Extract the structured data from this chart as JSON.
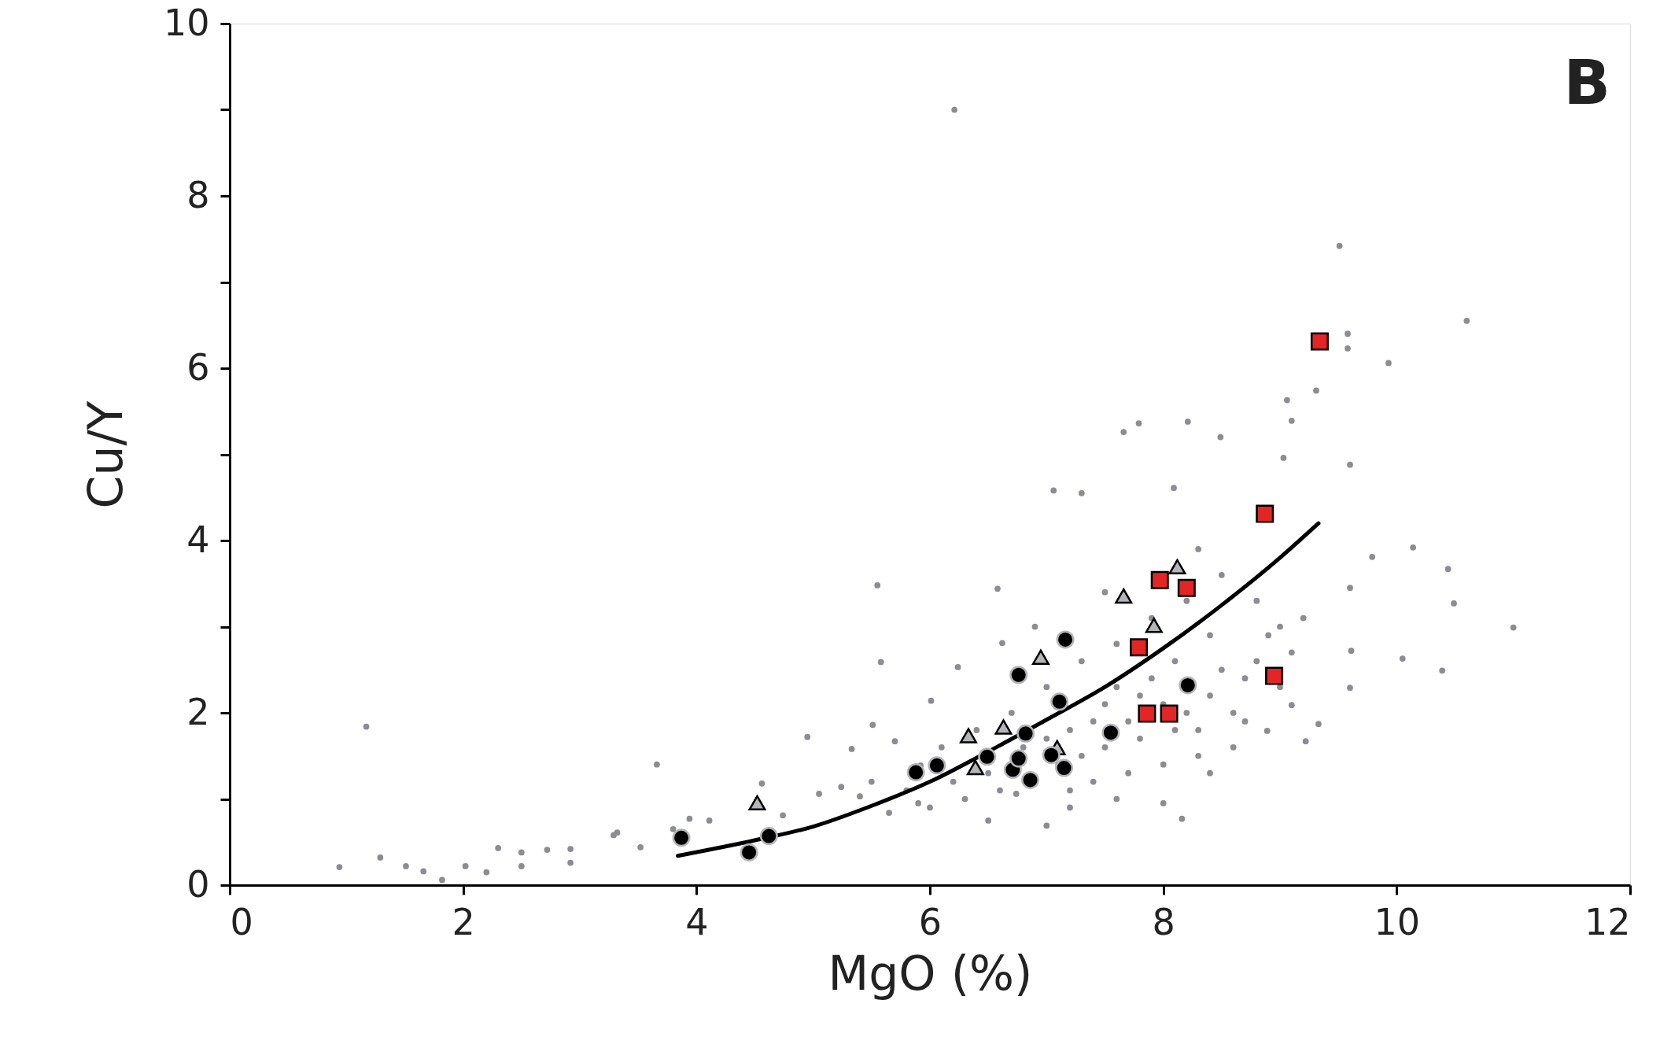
{
  "chart_data": {
    "type": "scatter",
    "xlabel": "MgO (%)",
    "ylabel": "Cu/Y",
    "xlim": [
      0,
      12
    ],
    "xticks": [
      0,
      2,
      4,
      6,
      8,
      10,
      12
    ],
    "ylim": [
      0,
      10
    ],
    "yticks": [
      0,
      {
        "value": 1,
        "label": null
      },
      2,
      {
        "value": 3,
        "label": null
      },
      4,
      {
        "value": 5,
        "label": null
      },
      6,
      {
        "value": 7,
        "label": null
      },
      8,
      {
        "value": 9,
        "label": null
      },
      10
    ],
    "grid": false,
    "annotations": [
      "B"
    ],
    "series": [
      {
        "type": "scatter",
        "marker": "circle",
        "color": "#8c8c94",
        "x": [
          0.94,
          1.17,
          1.29,
          1.51,
          1.66,
          1.82,
          2.02,
          2.2,
          2.3,
          2.5,
          2.5,
          2.72,
          2.92,
          2.92,
          3.29,
          3.32,
          3.52,
          3.66,
          3.8,
          3.94,
          4.11,
          4.56,
          4.74,
          4.95,
          5.05,
          5.24,
          5.33,
          5.4,
          5.51,
          5.55,
          5.58,
          5.65,
          5.7,
          5.92,
          6.01,
          6.21,
          6.24,
          6.58,
          6.62,
          6.74,
          7.0,
          7.06,
          7.3,
          7.66,
          7.79,
          8.09,
          8.16,
          8.21,
          8.49,
          9.03,
          9.06,
          9.1,
          9.31,
          9.51,
          9.58,
          9.58,
          9.6,
          9.93,
          10.6,
          10.14,
          10.44,
          10.49,
          9.79,
          10.05,
          10.39,
          11.0,
          9.6,
          9.61,
          9.6,
          9.33,
          9.22,
          9.1,
          8.89,
          7.0,
          7.2,
          7.4,
          7.5,
          7.6,
          7.8,
          7.9,
          8.0,
          8.2,
          8.3,
          8.4,
          8.5,
          8.6,
          8.7,
          8.8,
          8.9,
          9.0,
          9.1,
          9.2,
          8.6,
          8.3,
          8.0,
          7.7,
          7.4,
          7.2,
          6.6,
          6.3,
          6.0,
          5.8,
          5.5,
          6.1,
          6.4,
          6.7,
          7.0,
          7.3,
          7.6,
          7.9,
          8.2,
          8.5,
          8.8,
          8.4,
          8.1,
          7.7,
          7.5,
          7.3,
          7.1,
          6.8,
          6.5,
          6.2,
          5.9,
          7.8,
          8.1,
          8.4,
          8.7,
          9.0,
          7.2,
          7.6,
          8.0,
          6.5,
          6.9,
          7.5,
          8.3
        ],
        "values": [
          0.21,
          1.84,
          0.32,
          0.22,
          0.16,
          0.06,
          0.22,
          0.15,
          0.43,
          0.38,
          0.22,
          0.41,
          0.42,
          0.26,
          0.58,
          0.61,
          0.44,
          1.4,
          0.65,
          0.77,
          0.75,
          1.18,
          0.81,
          1.72,
          1.06,
          1.14,
          1.58,
          1.03,
          1.86,
          3.48,
          2.59,
          0.84,
          1.67,
          1.39,
          2.14,
          9.0,
          2.53,
          3.44,
          2.81,
          1.06,
          0.69,
          4.58,
          4.55,
          5.26,
          5.36,
          4.61,
          0.77,
          5.38,
          5.2,
          4.96,
          5.63,
          5.39,
          5.74,
          7.42,
          6.4,
          6.23,
          4.88,
          6.06,
          6.55,
          3.92,
          3.67,
          3.27,
          3.81,
          2.63,
          2.49,
          2.99,
          3.45,
          2.72,
          2.29,
          1.87,
          1.67,
          2.09,
          1.79,
          1.7,
          1.8,
          1.9,
          2.1,
          2.3,
          2.2,
          2.4,
          2.1,
          2.0,
          1.8,
          2.2,
          2.5,
          2.0,
          2.4,
          2.6,
          2.9,
          3.0,
          2.7,
          3.1,
          1.6,
          1.5,
          1.4,
          1.3,
          1.2,
          1.1,
          1.1,
          1.0,
          0.9,
          1.1,
          1.2,
          1.6,
          1.8,
          2.0,
          2.3,
          2.6,
          2.8,
          3.1,
          3.3,
          3.6,
          3.3,
          2.9,
          2.6,
          1.9,
          1.6,
          1.5,
          1.4,
          1.6,
          1.3,
          1.2,
          0.95,
          1.7,
          1.8,
          1.3,
          1.9,
          2.3,
          0.9,
          1.0,
          0.95,
          0.75,
          3.0,
          3.4,
          3.9
        ]
      },
      {
        "type": "line",
        "color": "#000000",
        "x": [
          3.84,
          4.5,
          5,
          5.5,
          6,
          6.5,
          7,
          7.5,
          8,
          8.5,
          9,
          9.33
        ],
        "values": [
          0.34,
          0.52,
          0.68,
          0.92,
          1.2,
          1.55,
          1.92,
          2.3,
          2.75,
          3.25,
          3.8,
          4.2
        ]
      },
      {
        "type": "scatter",
        "marker": "triangle",
        "color": "#b4b5b9",
        "x": [
          4.52,
          6.33,
          6.39,
          6.63,
          6.95,
          7.66,
          7.92,
          8.12,
          7.09
        ],
        "values": [
          0.93,
          1.71,
          1.34,
          1.81,
          2.62,
          3.33,
          2.99,
          3.67,
          1.57
        ]
      },
      {
        "type": "scatter",
        "marker": "circle",
        "color": "#000000",
        "x": [
          3.87,
          4.45,
          4.62,
          5.88,
          6.06,
          6.49,
          6.76,
          6.82,
          6.71,
          6.86,
          6.76,
          7.11,
          7.16,
          7.04,
          7.15,
          7.55,
          8.21
        ],
        "values": [
          0.55,
          0.38,
          0.57,
          1.31,
          1.39,
          1.49,
          2.44,
          1.76,
          1.34,
          1.22,
          1.47,
          2.13,
          2.85,
          1.51,
          1.36,
          1.77,
          2.32
        ]
      },
      {
        "type": "scatter",
        "marker": "square",
        "color": "#e42525",
        "x": [
          9.34,
          8.87,
          7.97,
          8.2,
          7.79,
          7.86,
          8.05,
          8.95
        ],
        "values": [
          6.31,
          4.31,
          3.54,
          3.45,
          2.76,
          1.99,
          1.99,
          2.43
        ]
      }
    ]
  }
}
